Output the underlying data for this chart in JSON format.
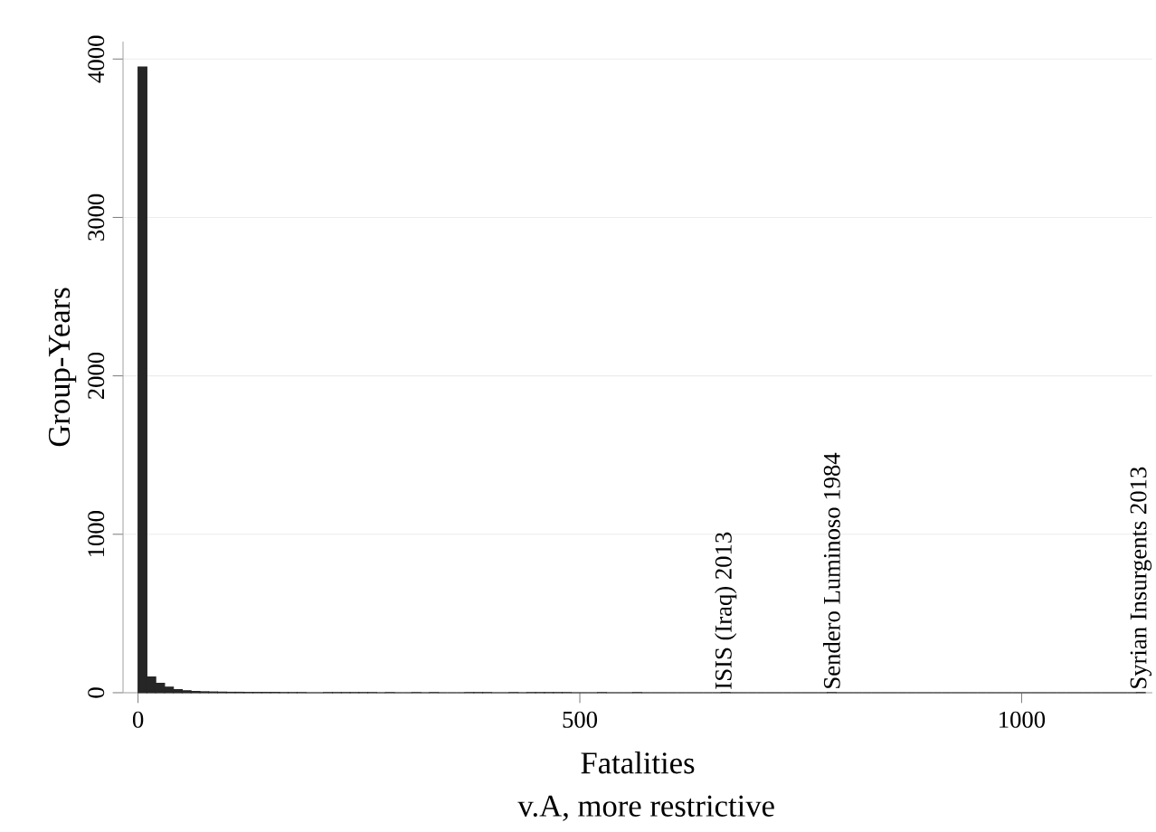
{
  "chart_data": {
    "type": "histogram",
    "xlabel": "Fatalities",
    "ylabel": "Group-Years",
    "color": "#262626",
    "bins": [
      0,
      10,
      20,
      30,
      40,
      50,
      60,
      70,
      80,
      90,
      100,
      110,
      120,
      130,
      140,
      150,
      160,
      170,
      180,
      190,
      200,
      210,
      220,
      230,
      240,
      250,
      260,
      270,
      280,
      290,
      300,
      310,
      320,
      330,
      340,
      350,
      360,
      370,
      380,
      390,
      400,
      410,
      420,
      430,
      440,
      450,
      460,
      470,
      480,
      490,
      500,
      510,
      520,
      530,
      540,
      550,
      560,
      570,
      580,
      590,
      600,
      610,
      620,
      630,
      640,
      650,
      660,
      670,
      680,
      690,
      700,
      710,
      720,
      730,
      740,
      750,
      760,
      770,
      780,
      790,
      800,
      810,
      820,
      830,
      840,
      850,
      860,
      870,
      880,
      890,
      900,
      910,
      920,
      930,
      940,
      950,
      960,
      970,
      980,
      990,
      1000,
      1010,
      1020,
      1030,
      1040,
      1050,
      1060,
      1070,
      1080,
      1090,
      1100,
      1110,
      1120,
      1130,
      1140
    ],
    "values": [
      3950,
      100,
      60,
      35,
      20,
      12,
      8,
      6,
      5,
      4,
      3,
      3,
      2,
      2,
      2,
      2,
      1,
      1,
      1,
      0,
      0,
      1,
      1,
      1,
      1,
      1,
      1,
      0,
      1,
      0,
      0,
      1,
      0,
      1,
      0,
      0,
      0,
      1,
      1,
      1,
      0,
      0,
      1,
      0,
      1,
      1,
      1,
      1,
      1,
      0,
      0,
      0,
      1,
      0,
      0,
      0,
      1,
      0,
      0,
      0,
      0,
      0,
      0,
      0,
      0,
      0,
      1,
      0,
      0,
      0,
      0,
      0,
      0,
      0,
      0,
      0,
      0,
      0,
      1,
      0,
      0,
      0,
      0,
      0,
      0,
      0,
      0,
      0,
      0,
      0,
      0,
      0,
      0,
      0,
      0,
      0,
      0,
      0,
      0,
      0,
      0,
      0,
      0,
      0,
      0,
      0,
      0,
      0,
      0,
      0,
      0,
      0,
      0,
      1
    ],
    "xlim": [
      -17,
      1148
    ],
    "ylim": [
      0,
      4110
    ],
    "xticks": [
      0,
      500,
      1000
    ],
    "yticks": [
      0,
      1000,
      2000,
      3000,
      4000
    ],
    "grid": "y",
    "annotations": [
      {
        "text": "ISIS (Iraq) 2013",
        "x": 665,
        "y": 1
      },
      {
        "text": "Sendero Luminoso 1984",
        "x": 785,
        "y": 1
      },
      {
        "text": "Syrian Insurgents 2013",
        "x": 1135,
        "y": 1
      },
      "v.A, more restrictive"
    ]
  }
}
